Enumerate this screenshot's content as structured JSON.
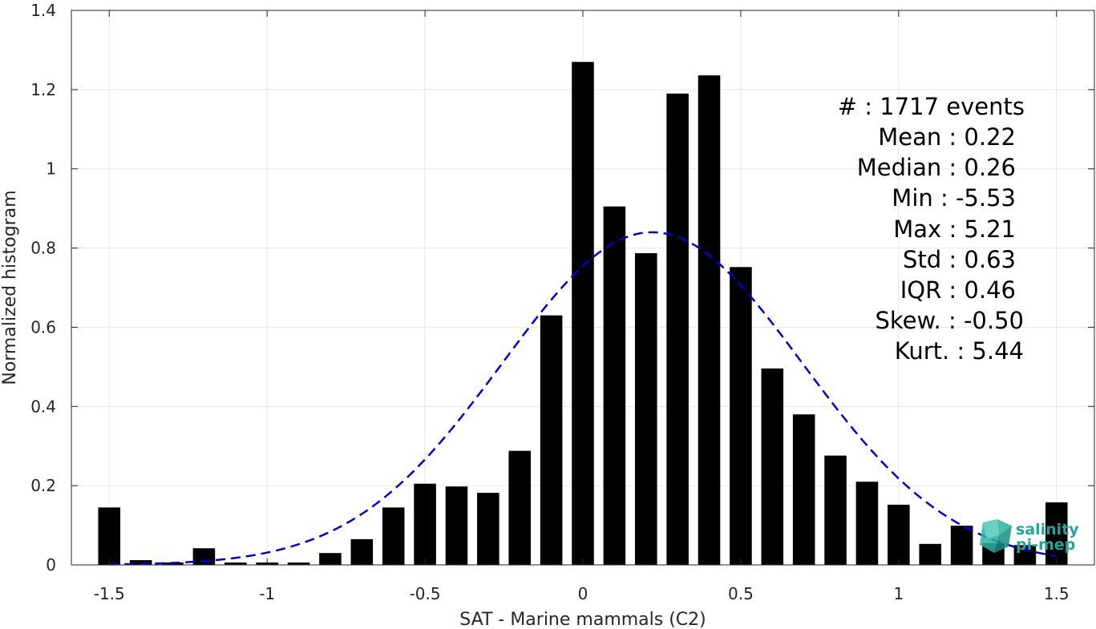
{
  "chart_data": {
    "type": "bar",
    "xlabel": "SAT - Marine mammals (C2)",
    "ylabel": "Normalized histogram",
    "xlim": [
      -1.62,
      1.62
    ],
    "ylim": [
      0,
      1.4
    ],
    "xticks": [
      -1.5,
      -1,
      -0.5,
      0,
      0.5,
      1,
      1.5
    ],
    "xtick_labels": [
      "-1.5",
      "-1",
      "-0.5",
      "0",
      "0.5",
      "1",
      "1.5"
    ],
    "yticks": [
      0,
      0.2,
      0.4,
      0.6,
      0.8,
      1,
      1.2,
      1.4
    ],
    "ytick_labels": [
      "0",
      "0.2",
      "0.4",
      "0.6",
      "0.8",
      "1",
      "1.2",
      "1.4"
    ],
    "grid": true,
    "bar_width": 0.07,
    "x": [
      -1.5,
      -1.4,
      -1.3,
      -1.2,
      -1.1,
      -1.0,
      -0.9,
      -0.8,
      -0.7,
      -0.6,
      -0.5,
      -0.4,
      -0.3,
      -0.2,
      -0.1,
      0.0,
      0.1,
      0.2,
      0.3,
      0.4,
      0.5,
      0.6,
      0.7,
      0.8,
      0.9,
      1.0,
      1.1,
      1.2,
      1.3,
      1.4,
      1.5
    ],
    "values": [
      0.145,
      0.012,
      0.006,
      0.042,
      0.006,
      0.006,
      0.006,
      0.03,
      0.065,
      0.145,
      0.205,
      0.198,
      0.182,
      0.288,
      0.63,
      1.27,
      0.905,
      0.787,
      1.19,
      1.236,
      0.752,
      0.496,
      0.38,
      0.276,
      0.21,
      0.152,
      0.053,
      0.099,
      0.055,
      0.05,
      0.158
    ],
    "bar_color": "#000000",
    "fit_curve": {
      "style": "dashed",
      "color": "#0000dd",
      "mean": 0.22,
      "std": 0.475,
      "peak": 0.84,
      "x_start": -1.5,
      "x_end": 1.5
    },
    "stats": [
      "#  : 1717 events",
      "Mean : 0.22",
      "Median : 0.26",
      "Min : -5.53",
      "Max : 5.21",
      "Std : 0.63",
      "IQR : 0.46",
      "Skew. : -0.50",
      "Kurt. : 5.44"
    ]
  },
  "logo": {
    "line1": "salinity",
    "line2": "pi-mep",
    "color": "#1fa89a"
  }
}
